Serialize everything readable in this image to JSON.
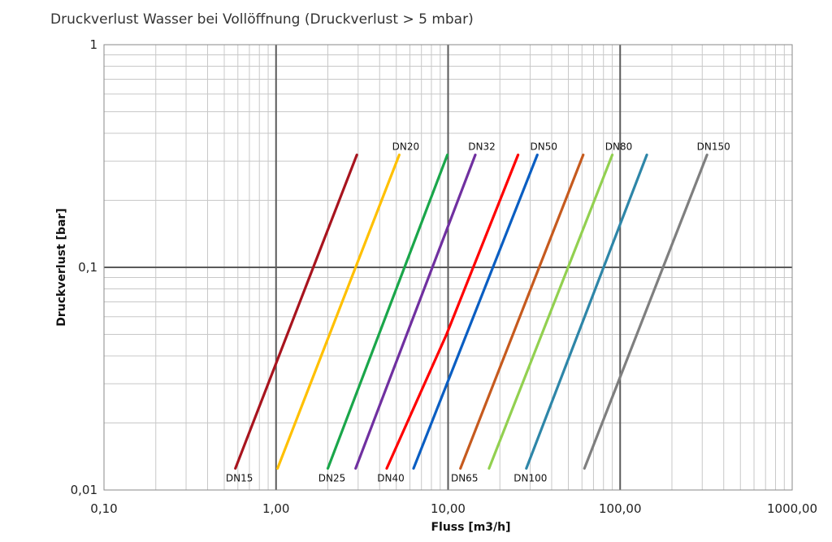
{
  "chart_data": {
    "type": "line",
    "title": "Druckverlust Wasser bei Vollöffnung (Druckverlust > 5 mbar)",
    "xlabel": "Fluss [m3/h]",
    "ylabel": "Druckverlust [bar]",
    "x_scale": "log",
    "y_scale": "log",
    "xlim": [
      0.1,
      1000
    ],
    "ylim": [
      0.01,
      1
    ],
    "grid": true,
    "x_ticks": [
      {
        "value": 0.1,
        "label": "0,10"
      },
      {
        "value": 1,
        "label": "1,00"
      },
      {
        "value": 10,
        "label": "10,00"
      },
      {
        "value": 100,
        "label": "100,00"
      },
      {
        "value": 1000,
        "label": "1000,00"
      }
    ],
    "y_ticks": [
      {
        "value": 0.01,
        "label": "0,01"
      },
      {
        "value": 0.1,
        "label": "0,1"
      },
      {
        "value": 1,
        "label": "1"
      }
    ],
    "series": [
      {
        "name": "DN15",
        "color": "#a8141e",
        "label_pos": "bottom",
        "x": [
          0.58,
          2.95
        ],
        "y": [
          0.0125,
          0.32
        ]
      },
      {
        "name": "DN20",
        "color": "#ffc000",
        "label_pos": "top",
        "x": [
          1.02,
          5.2
        ],
        "y": [
          0.0125,
          0.32
        ]
      },
      {
        "name": "DN25",
        "color": "#1aa64a",
        "label_pos": "bottom",
        "x": [
          2.0,
          9.9
        ],
        "y": [
          0.0125,
          0.32
        ]
      },
      {
        "name": "DN32",
        "color": "#7030a0",
        "label_pos": "top",
        "x": [
          2.9,
          14.4
        ],
        "y": [
          0.0125,
          0.32
        ]
      },
      {
        "name": "DN40",
        "color": "#ff0000",
        "label_pos": "bottom",
        "x": [
          4.4,
          9.8,
          25.5
        ],
        "y": [
          0.0125,
          0.05,
          0.32
        ]
      },
      {
        "name": "DN50",
        "color": "#0a5ec2",
        "label_pos": "top",
        "x": [
          6.3,
          33.0
        ],
        "y": [
          0.0125,
          0.32
        ]
      },
      {
        "name": "DN65",
        "color": "#c65a1e",
        "label_pos": "bottom",
        "x": [
          11.8,
          61.0
        ],
        "y": [
          0.0125,
          0.32
        ]
      },
      {
        "name": "DN80",
        "color": "#92d050",
        "label_pos": "top",
        "x": [
          17.3,
          90.0
        ],
        "y": [
          0.0125,
          0.32
        ]
      },
      {
        "name": "DN100",
        "color": "#2e86a8",
        "label_pos": "bottom",
        "x": [
          28.5,
          143.0
        ],
        "y": [
          0.0125,
          0.32
        ]
      },
      {
        "name": "DN150",
        "color": "#7f7f7f",
        "label_pos": "top",
        "x": [
          62.0,
          320.0
        ],
        "y": [
          0.0125,
          0.32
        ]
      }
    ]
  }
}
